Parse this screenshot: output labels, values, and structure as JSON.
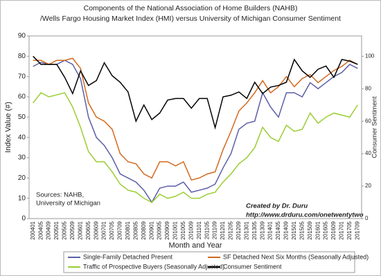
{
  "chart_data": {
    "type": "line",
    "title": [
      "Components of the National Association of Home Builders (NAHB)",
      "/Wells Fargo Housing Market Index (HMI) versus University of Michigan Consumer Sentiment"
    ],
    "x_label": "Month and Year",
    "y_label": "Index Value (#)",
    "y2_label": "Consumer Sentiment",
    "annotations": [
      "Sources: NAHB,",
      "University of Michigan",
      "Created by Dr. Duru",
      "http://www.drduru.com/onetwentytwo"
    ],
    "categories": [
      "200401",
      "200405",
      "200409",
      "200501",
      "200505",
      "200509",
      "200601",
      "200605",
      "200609",
      "200701",
      "200705",
      "200709",
      "200801",
      "200805",
      "200809",
      "200901",
      "200905",
      "200909",
      "201001",
      "201005",
      "201009",
      "201101",
      "201105",
      "201109",
      "201201",
      "201205",
      "201209",
      "201301",
      "201305",
      "201309",
      "201401",
      "201405",
      "201409",
      "201501",
      "201505",
      "201509",
      "201601",
      "201605",
      "201609",
      "201701",
      "201705",
      "201709"
    ],
    "series": [
      {
        "name": "Single-Family Detached Present",
        "color": "#5b5ea6",
        "values": [
          75,
          77,
          76,
          76,
          78,
          76,
          69,
          50,
          40,
          36,
          30,
          22,
          20,
          18,
          14,
          8,
          15,
          16,
          16,
          18,
          13,
          14,
          15,
          17,
          25,
          32,
          44,
          47,
          48,
          62,
          55,
          50,
          62,
          62,
          60,
          67,
          64,
          67,
          70,
          72,
          76,
          74
        ]
      },
      {
        "name": "SF Detached Next Six Months (Seasonally Adjusted)",
        "color": "#d2691e",
        "values": [
          78,
          78,
          76,
          78,
          78,
          79,
          74,
          57,
          50,
          48,
          44,
          32,
          28,
          27,
          22,
          20,
          28,
          28,
          26,
          28,
          19,
          20,
          22,
          23,
          34,
          43,
          53,
          57,
          62,
          68,
          62,
          65,
          70,
          65,
          69,
          71,
          67,
          70,
          73,
          75,
          78,
          76
        ]
      },
      {
        "name": "Traffic of Prospective Buyers (Seasonally Adjusted)",
        "color": "#9acd32",
        "values": [
          57,
          62,
          60,
          61,
          62,
          55,
          45,
          33,
          28,
          28,
          23,
          17,
          14,
          13,
          10,
          8,
          12,
          10,
          11,
          13,
          10,
          10,
          12,
          13,
          18,
          22,
          27,
          30,
          35,
          45,
          40,
          38,
          46,
          43,
          44,
          52,
          47,
          50,
          52,
          51,
          50,
          56
        ]
      },
      {
        "name": "Consumer Sentiment",
        "color": "#000000",
        "axis": "y2",
        "values": [
          100,
          95,
          95,
          95,
          87,
          77,
          91,
          82,
          85,
          96,
          88,
          84,
          78,
          60,
          70,
          61,
          65,
          73,
          74,
          74,
          68,
          74,
          74,
          56,
          75,
          76,
          78,
          74,
          84,
          77,
          81,
          82,
          84,
          98,
          91,
          87,
          92,
          94,
          87,
          98,
          97,
          95
        ]
      }
    ],
    "ylim": [
      0,
      90
    ],
    "yticks": [
      0,
      10,
      20,
      30,
      40,
      50,
      60,
      70,
      80,
      90
    ],
    "y2lim": [
      0,
      112.5
    ],
    "y2ticks": [
      0,
      20,
      40,
      60,
      80,
      100
    ],
    "grid": false
  }
}
